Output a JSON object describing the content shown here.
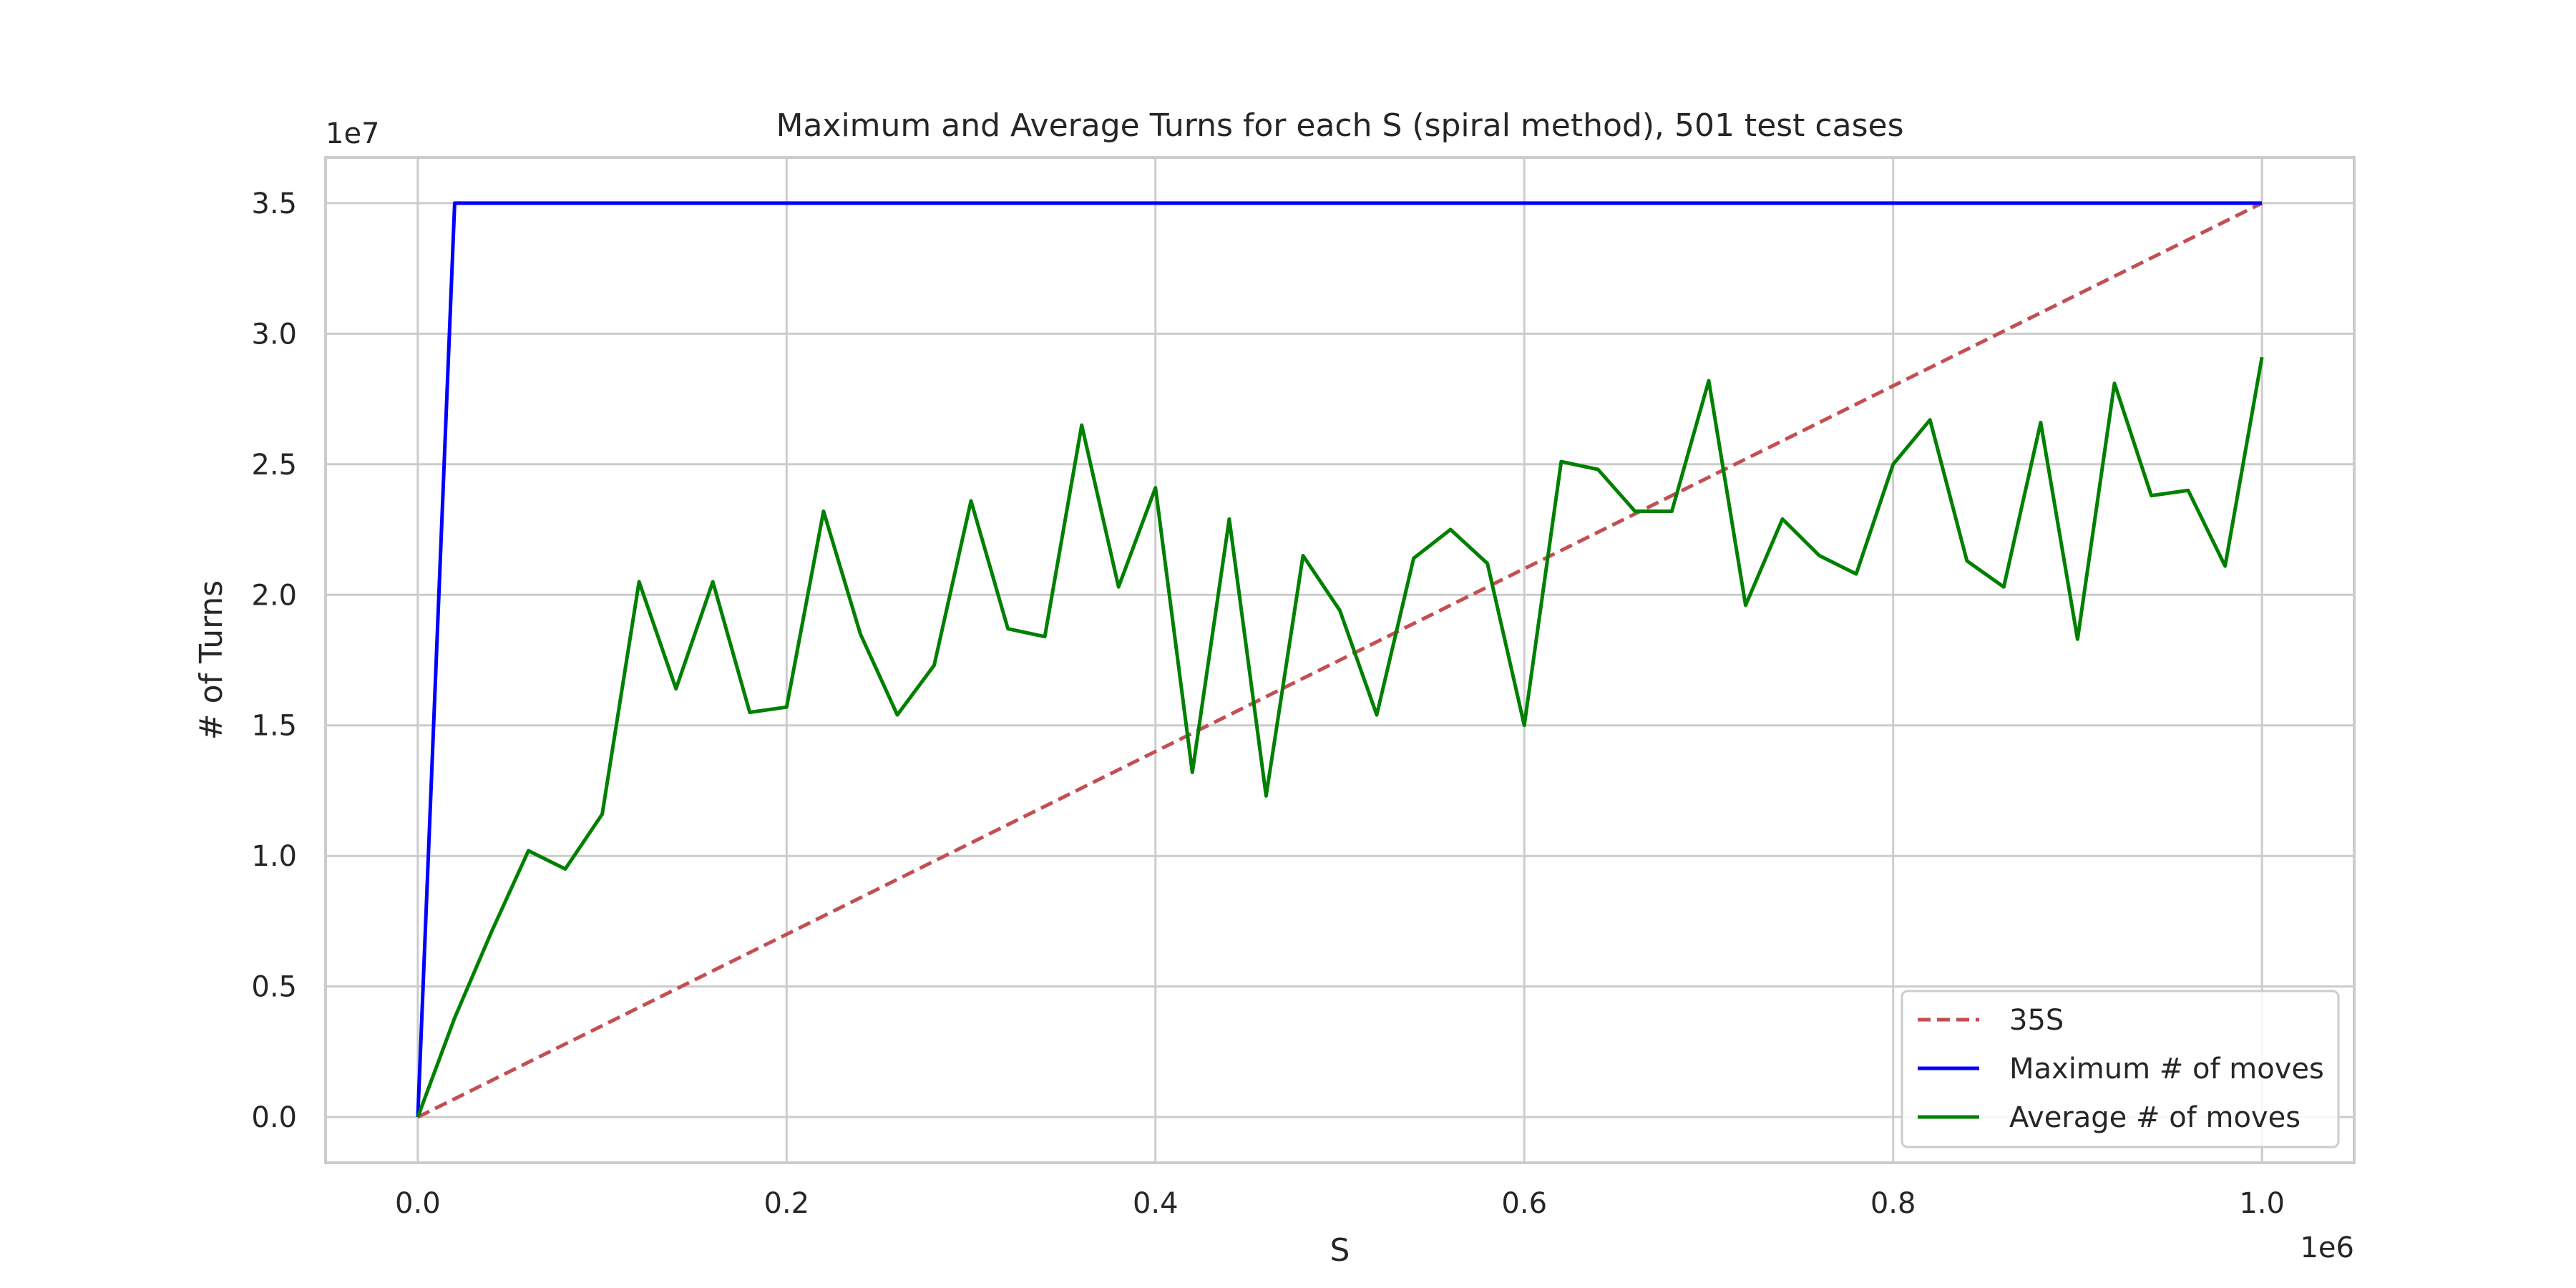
{
  "chart_data": {
    "type": "line",
    "title": "Maximum and Average Turns for each S (spiral method), 501 test cases",
    "xlabel": "S",
    "ylabel": "# of Turns",
    "x_offset_label": "1e6",
    "y_offset_label": "1e7",
    "xlim": [
      -50000,
      1050000
    ],
    "ylim": [
      -1750000,
      36750000
    ],
    "x_ticks": [
      0,
      200000,
      400000,
      600000,
      800000,
      1000000
    ],
    "x_tick_labels": [
      "0.0",
      "0.2",
      "0.4",
      "0.6",
      "0.8",
      "1.0"
    ],
    "y_ticks": [
      0,
      5000000,
      10000000,
      15000000,
      20000000,
      25000000,
      30000000,
      35000000
    ],
    "y_tick_labels": [
      "0.0",
      "0.5",
      "1.0",
      "1.5",
      "2.0",
      "2.5",
      "3.0",
      "3.5"
    ],
    "grid": true,
    "legend_position": "lower-right",
    "series": [
      {
        "name": "35S",
        "color": "#c44e52",
        "style": "dashed",
        "x": [
          0,
          1000000
        ],
        "y": [
          0,
          35000000
        ]
      },
      {
        "name": "Maximum # of moves",
        "color": "#0000ff",
        "style": "solid",
        "x": [
          0,
          20000,
          1000000
        ],
        "y": [
          0,
          35000000,
          35000000
        ]
      },
      {
        "name": "Average # of moves",
        "color": "#008000",
        "style": "solid",
        "x": [
          0,
          20000,
          40000,
          60000,
          80000,
          100000,
          120000,
          140000,
          160000,
          180000,
          200000,
          220000,
          240000,
          260000,
          280000,
          300000,
          320000,
          340000,
          360000,
          380000,
          400000,
          420000,
          440000,
          460000,
          480000,
          500000,
          520000,
          540000,
          560000,
          580000,
          600000,
          620000,
          640000,
          660000,
          680000,
          700000,
          720000,
          740000,
          760000,
          780000,
          800000,
          820000,
          840000,
          860000,
          880000,
          900000,
          920000,
          940000,
          960000,
          980000,
          1000000
        ],
        "y": [
          0,
          3800000,
          7100000,
          10200000,
          9500000,
          11600000,
          20500000,
          16400000,
          20500000,
          15500000,
          15700000,
          23200000,
          18500000,
          15400000,
          17300000,
          23600000,
          18700000,
          18400000,
          26500000,
          20300000,
          24100000,
          13200000,
          22900000,
          12300000,
          21500000,
          19400000,
          15400000,
          21400000,
          22500000,
          21200000,
          15000000,
          25100000,
          24800000,
          23200000,
          23200000,
          28200000,
          19600000,
          22900000,
          21500000,
          20800000,
          25000000,
          26700000,
          21300000,
          20300000,
          26600000,
          18300000,
          28100000,
          23800000,
          24000000,
          21100000,
          29100000
        ]
      }
    ]
  }
}
